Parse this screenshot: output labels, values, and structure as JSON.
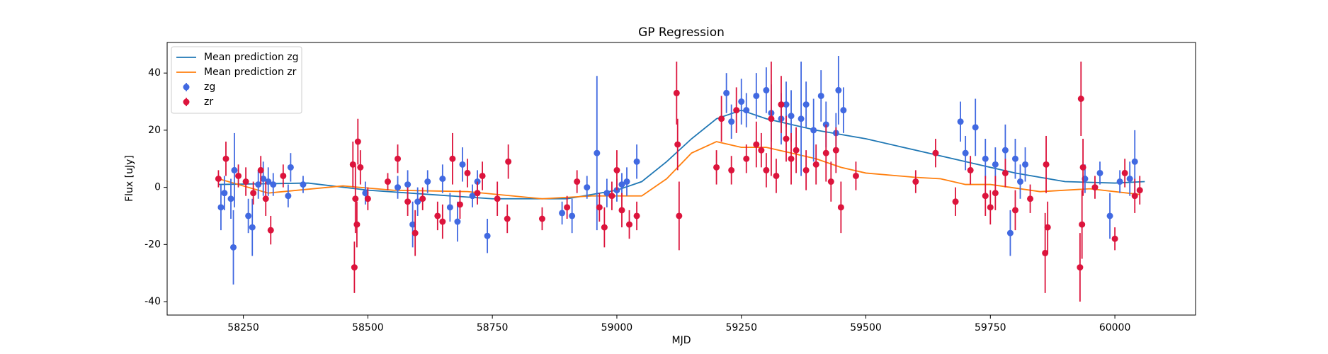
{
  "chart_data": {
    "type": "scatter",
    "title": "GP Regression",
    "xlabel": "MJD",
    "ylabel": "Flux [uJy]",
    "xlim": [
      58097,
      60162
    ],
    "ylim": [
      -44.7,
      50.7
    ],
    "xticks": [
      58250,
      58500,
      58750,
      59000,
      59250,
      59500,
      59750,
      60000
    ],
    "yticks": [
      -40,
      -20,
      0,
      20,
      40
    ],
    "legend": "upper left",
    "lines": [
      {
        "name": "Mean prediction zg",
        "color": "#1f77b4",
        "x": [
          58200,
          58380,
          58500,
          58750,
          58900,
          59000,
          59050,
          59100,
          59150,
          59200,
          59250,
          59300,
          59400,
          59500,
          59600,
          59700,
          59800,
          59900,
          60000,
          60060
        ],
        "values": [
          1,
          1.5,
          -1,
          -4,
          -4,
          -1,
          2,
          9,
          17,
          24,
          27,
          24,
          20,
          17,
          13,
          9,
          5,
          2,
          1.5,
          2
        ]
      },
      {
        "name": "Mean prediction zr",
        "color": "#ff7f0e",
        "x": [
          58200,
          58300,
          58450,
          58550,
          58700,
          58850,
          58950,
          59050,
          59100,
          59150,
          59200,
          59250,
          59300,
          59350,
          59400,
          59450,
          59500,
          59600,
          59650,
          59700,
          59750,
          59850,
          59950,
          60050
        ],
        "values": [
          3,
          -2,
          0.5,
          -1,
          -1.5,
          -4,
          -3,
          -3,
          3,
          12,
          16,
          14,
          14,
          12,
          10,
          7,
          5,
          3.5,
          3,
          1,
          1,
          -1.5,
          -0.5,
          -2.5
        ]
      }
    ],
    "series": [
      {
        "name": "zg",
        "color": "#4169e1",
        "x": [
          58205,
          58212,
          58225,
          58230,
          58232,
          58260,
          58268,
          58280,
          58290,
          58300,
          58310,
          58340,
          58345,
          58370,
          58495,
          58560,
          58580,
          58590,
          58600,
          58620,
          58650,
          58665,
          58680,
          58690,
          58710,
          58720,
          58740,
          58890,
          58910,
          58940,
          58960,
          58980,
          59000,
          59010,
          59020,
          59040,
          59220,
          59230,
          59250,
          59260,
          59280,
          59300,
          59310,
          59330,
          59340,
          59350,
          59370,
          59380,
          59395,
          59410,
          59420,
          59440,
          59445,
          59455,
          59690,
          59700,
          59720,
          59740,
          59760,
          59780,
          59790,
          59800,
          59810,
          59820,
          59940,
          59970,
          59990,
          60010,
          60030,
          60040
        ],
        "values": [
          -7,
          -2,
          -4,
          -21,
          6,
          -10,
          -14,
          1,
          3,
          2,
          1,
          -3,
          7,
          1,
          -2,
          0,
          1,
          -13,
          -5,
          2,
          3,
          -7,
          -12,
          8,
          -3,
          2,
          -17,
          -9,
          -10,
          0,
          12,
          -2,
          -1,
          1,
          2,
          9,
          33,
          23,
          30,
          27,
          32,
          34,
          26,
          24,
          29,
          25,
          24,
          29,
          20,
          32,
          22,
          19,
          34,
          27,
          23,
          12,
          21,
          10,
          8,
          13,
          -16,
          10,
          2,
          8,
          3,
          5,
          -10,
          2,
          3,
          9
        ],
        "errors": [
          8,
          6,
          7,
          13,
          13,
          6,
          10,
          5,
          6,
          5,
          4,
          4,
          5,
          3,
          4,
          4,
          5,
          8,
          5,
          4,
          5,
          5,
          7,
          6,
          4,
          4,
          6,
          4,
          6,
          4,
          27,
          5,
          4,
          4,
          5,
          6,
          7,
          6,
          8,
          6,
          8,
          8,
          10,
          9,
          8,
          9,
          20,
          8,
          11,
          9,
          8,
          7,
          12,
          8,
          7,
          6,
          10,
          7,
          6,
          9,
          8,
          7,
          6,
          6,
          5,
          4,
          8,
          4,
          6,
          11
        ]
      },
      {
        "name": "zr",
        "color": "#dc143c",
        "x": [
          58200,
          58215,
          58240,
          58255,
          58270,
          58285,
          58295,
          58305,
          58330,
          58470,
          58473,
          58475,
          58478,
          58480,
          58485,
          58500,
          58540,
          58560,
          58580,
          58595,
          58610,
          58640,
          58650,
          58670,
          58685,
          58700,
          58720,
          58730,
          58760,
          58780,
          58782,
          58850,
          58900,
          58920,
          58965,
          58975,
          58990,
          59000,
          59010,
          59025,
          59040,
          59120,
          59122,
          59125,
          59200,
          59210,
          59230,
          59240,
          59260,
          59280,
          59290,
          59300,
          59310,
          59320,
          59330,
          59340,
          59350,
          59360,
          59380,
          59400,
          59420,
          59430,
          59440,
          59450,
          59480,
          59600,
          59640,
          59680,
          59710,
          59740,
          59750,
          59760,
          59780,
          59800,
          59830,
          59860,
          59862,
          59865,
          59930,
          59932,
          59934,
          59936,
          59960,
          60000,
          60020,
          60040,
          60050
        ],
        "values": [
          3,
          10,
          4,
          2,
          -2,
          6,
          -4,
          -15,
          4,
          8,
          -28,
          -4,
          -13,
          16,
          7,
          -4,
          2,
          10,
          -5,
          -16,
          -4,
          -10,
          -12,
          10,
          -6,
          5,
          -2,
          4,
          -4,
          -11,
          9,
          -11,
          -7,
          2,
          -7,
          -14,
          -3,
          6,
          -8,
          -13,
          -10,
          33,
          15,
          -10,
          7,
          24,
          6,
          27,
          10,
          15,
          13,
          6,
          24,
          4,
          29,
          17,
          10,
          13,
          6,
          8,
          12,
          2,
          13,
          -7,
          4,
          2,
          12,
          -5,
          6,
          -3,
          -7,
          -2,
          5,
          -8,
          -4,
          -23,
          8,
          -14,
          -28,
          31,
          -13,
          7,
          0,
          -18,
          5,
          -3,
          -1
        ],
        "errors": [
          3,
          6,
          4,
          5,
          4,
          5,
          6,
          5,
          4,
          8,
          9,
          12,
          8,
          8,
          6,
          4,
          3,
          5,
          5,
          8,
          4,
          5,
          6,
          9,
          5,
          5,
          4,
          5,
          6,
          5,
          6,
          4,
          4,
          4,
          5,
          7,
          5,
          7,
          6,
          5,
          5,
          11,
          9,
          12,
          6,
          8,
          5,
          8,
          5,
          8,
          6,
          6,
          20,
          6,
          10,
          8,
          9,
          8,
          7,
          7,
          10,
          7,
          8,
          9,
          5,
          4,
          5,
          5,
          5,
          7,
          6,
          6,
          5,
          7,
          5,
          14,
          10,
          9,
          12,
          13,
          12,
          10,
          4,
          4,
          5,
          6,
          5
        ]
      }
    ]
  }
}
